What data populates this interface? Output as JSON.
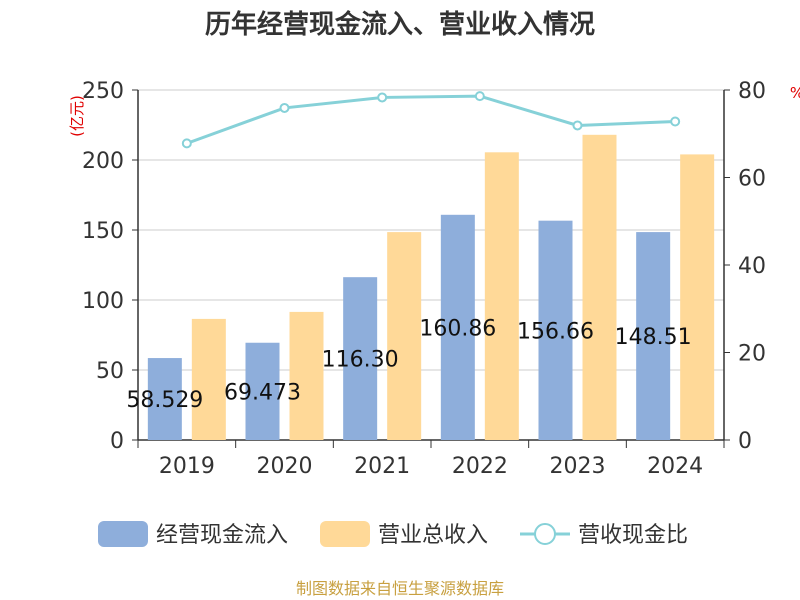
{
  "chart_data": {
    "type": "bar",
    "title": "历年经营现金流入、营业收入情况",
    "source": "制图数据来自恒生聚源数据库",
    "left_unit": "(亿元)",
    "right_unit": "%",
    "categories": [
      "2019",
      "2020",
      "2021",
      "2022",
      "2023",
      "2024"
    ],
    "y_left": {
      "min": 0,
      "max": 250,
      "ticks": [
        "0",
        "50",
        "100",
        "150",
        "200",
        "250"
      ]
    },
    "y_right": {
      "min": 0,
      "max": 80,
      "ticks": [
        "0",
        "20",
        "40",
        "60",
        "80"
      ]
    },
    "series": [
      {
        "name": "经营现金流入",
        "kind": "bar",
        "axis": "left",
        "color": "#8eaedb",
        "values": [
          58.529,
          69.473,
          116.3,
          160.86,
          156.66,
          148.51
        ],
        "labels": [
          "58.529",
          "69.473",
          "116.30",
          "160.86",
          "156.66",
          "148.51"
        ]
      },
      {
        "name": "营业总收入",
        "kind": "bar",
        "axis": "left",
        "color": "#ffd998",
        "values": [
          86.5,
          91.5,
          148.5,
          205.5,
          218.0,
          204.0
        ]
      },
      {
        "name": "营收现金比",
        "kind": "line",
        "axis": "right",
        "color": "#86d1d8",
        "values": [
          67.8,
          75.9,
          78.3,
          78.6,
          71.9,
          72.8
        ]
      }
    ],
    "legend_position": "bottom",
    "grid": true
  }
}
